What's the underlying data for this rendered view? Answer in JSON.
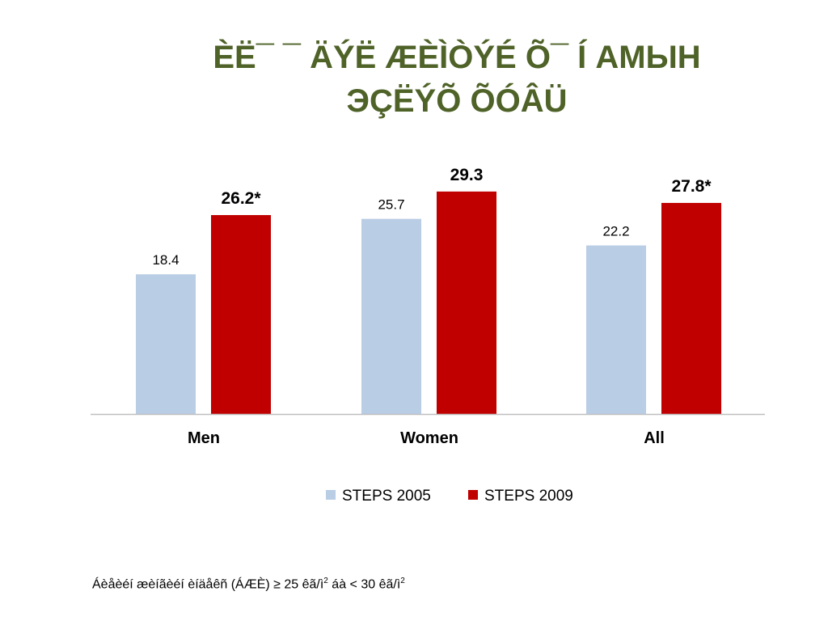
{
  "slide": {
    "title_line1": "ÈË¯ ¯ ÄÝË ÆÈÌÒÝÉ Õ¯ Í АМЫН",
    "title_line2": "ЭÇËÝÕ ÕÓÂÜ"
  },
  "footnote": {
    "text": "Áèåèéí æèíãèéí èíäåêñ (ÁÆÈ) ≥ 25 êã/ì",
    "sup1": "2",
    "text2": " áà < 30 êã/ì",
    "sup2": "2"
  },
  "chart_data": {
    "type": "bar",
    "categories": [
      "Men",
      "Women",
      "All"
    ],
    "series": [
      {
        "name": "STEPS 2005",
        "color": "#b9cde5",
        "values": [
          18.4,
          25.7,
          22.2
        ],
        "labels": [
          "18.4",
          "25.7",
          "22.2"
        ],
        "label_bold": [
          false,
          false,
          false
        ]
      },
      {
        "name": "STEPS 2009",
        "color": "#c00000",
        "values": [
          26.2,
          29.3,
          27.8
        ],
        "labels": [
          "26.2*",
          "29.3",
          "27.8*"
        ],
        "label_bold": [
          true,
          true,
          true
        ]
      }
    ],
    "ylim": [
      0,
      32
    ],
    "grid": false,
    "legend_position": "bottom",
    "axis_color": "#bfbfbf"
  }
}
